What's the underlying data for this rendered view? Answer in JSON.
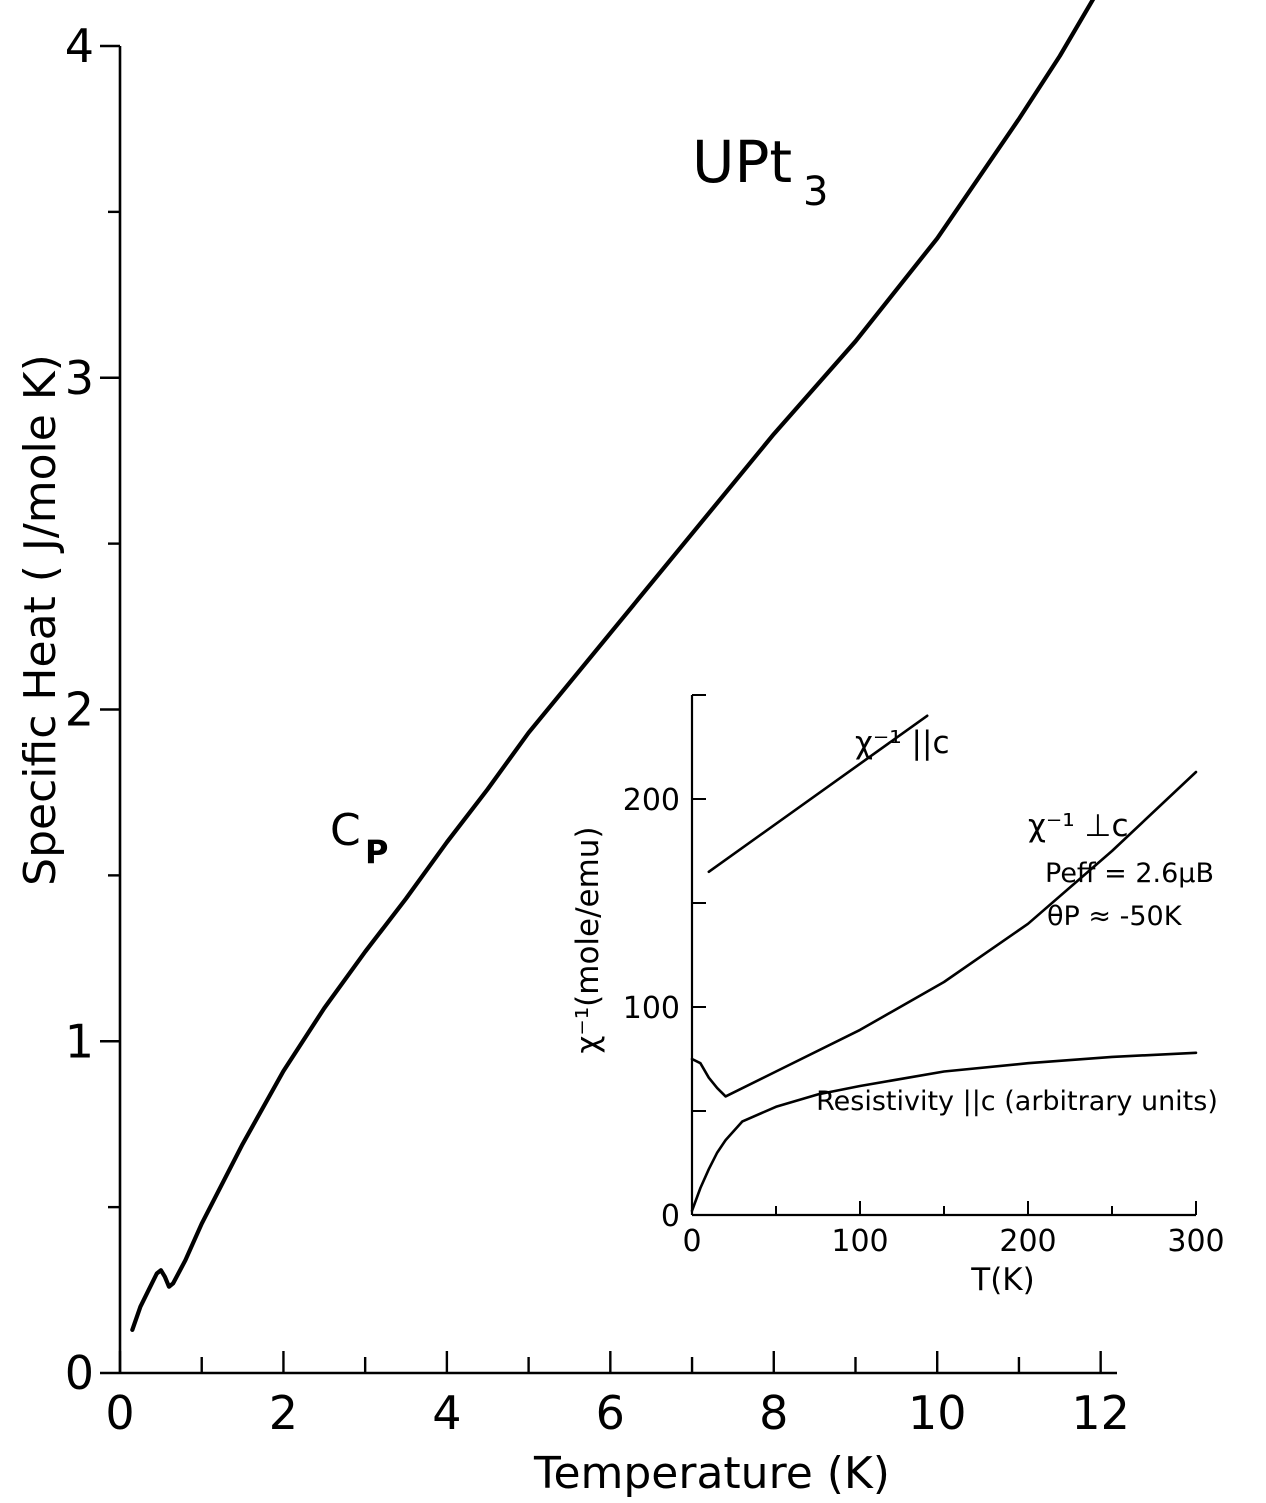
{
  "chart_data": [
    {
      "type": "line",
      "title": "UPt",
      "title_subscript": "3",
      "xlabel": "Temperature (K)",
      "ylabel": "Specific Heat ( J/mole K)",
      "xlim": [
        0,
        12.2
      ],
      "ylim": [
        0,
        4
      ],
      "xticks": [
        0,
        2,
        4,
        6,
        8,
        10,
        12
      ],
      "xtick_labels": [
        "0",
        "2",
        "4",
        "6",
        "8",
        "10",
        "12"
      ],
      "yticks": [
        0,
        1,
        2,
        3,
        4
      ],
      "ytick_labels": [
        "0",
        "1",
        "2",
        "3",
        "4"
      ],
      "grid": false,
      "series": [
        {
          "name": "C",
          "name_subscript": "P",
          "x": [
            0.15,
            0.25,
            0.35,
            0.45,
            0.5,
            0.55,
            0.6,
            0.65,
            0.8,
            1.0,
            1.5,
            2.0,
            2.5,
            3.0,
            3.5,
            4.0,
            4.5,
            5.0,
            6.0,
            7.0,
            8.0,
            9.0,
            10.0,
            10.5,
            11.0,
            11.5,
            12.0,
            12.2
          ],
          "y": [
            0.13,
            0.2,
            0.25,
            0.3,
            0.31,
            0.29,
            0.26,
            0.27,
            0.34,
            0.45,
            0.69,
            0.91,
            1.1,
            1.27,
            1.43,
            1.6,
            1.76,
            1.93,
            2.23,
            2.53,
            2.83,
            3.11,
            3.42,
            3.6,
            3.78,
            3.97,
            4.18,
            4.28
          ]
        }
      ]
    },
    {
      "type": "line",
      "title": "",
      "xlabel": "T(K)",
      "ylabel": "χ⁻¹(mole/emu)",
      "xlim": [
        0,
        300
      ],
      "ylim": [
        0,
        250
      ],
      "xticks": [
        0,
        100,
        200,
        300
      ],
      "xtick_labels": [
        "0",
        "100",
        "200",
        "300"
      ],
      "yticks": [
        0,
        100,
        200
      ],
      "ytick_labels": [
        "0",
        "100",
        "200"
      ],
      "grid": false,
      "series": [
        {
          "name": "χ⁻¹ ||c",
          "x": [
            10,
            140
          ],
          "y": [
            165,
            240
          ]
        },
        {
          "name": "χ⁻¹ ⊥c",
          "x": [
            0,
            5,
            10,
            15,
            20,
            50,
            100,
            150,
            200,
            250,
            300
          ],
          "y": [
            75,
            73,
            66,
            61,
            57,
            69,
            89,
            112,
            140,
            175,
            213
          ]
        },
        {
          "name": "Resistivity ||c (arbitrary units)",
          "x": [
            0,
            5,
            10,
            15,
            20,
            30,
            50,
            75,
            100,
            150,
            200,
            250,
            300
          ],
          "y": [
            2,
            13,
            22,
            30,
            36,
            45,
            52,
            58,
            62,
            69,
            73,
            76,
            78
          ]
        }
      ],
      "annotations": [
        "Peff = 2.6μB",
        "θP ≈ -50K"
      ]
    }
  ]
}
